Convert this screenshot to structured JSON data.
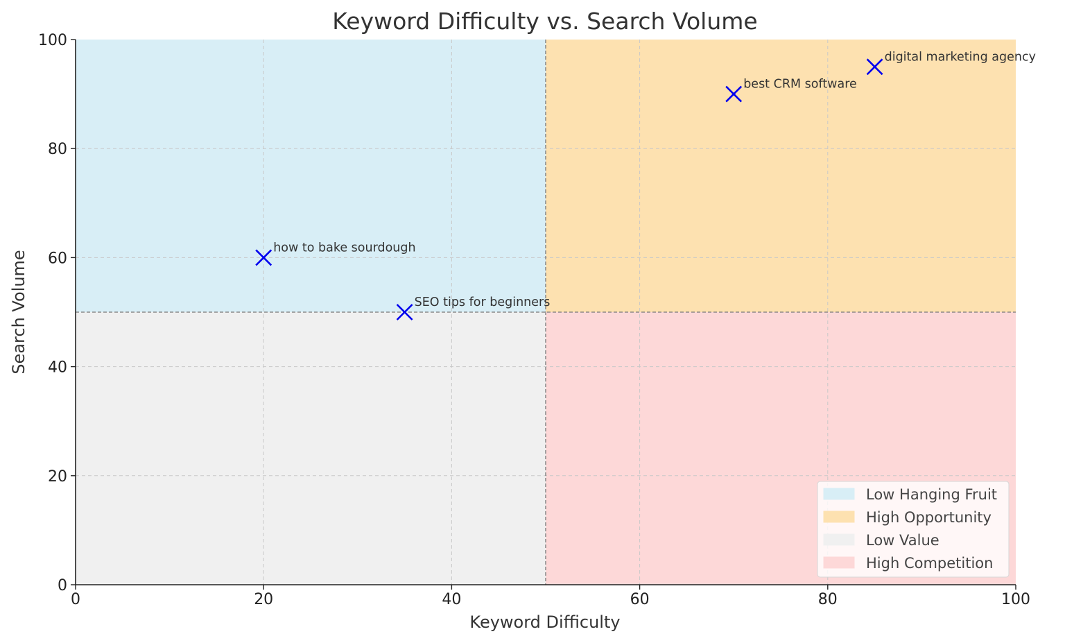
{
  "chart_data": {
    "type": "scatter",
    "title": "Keyword Difficulty vs. Search Volume",
    "xlabel": "Keyword Difficulty",
    "ylabel": "Search Volume",
    "xlim": [
      0,
      100
    ],
    "ylim": [
      0,
      100
    ],
    "xticks": [
      0,
      20,
      40,
      60,
      80,
      100
    ],
    "yticks": [
      0,
      20,
      40,
      60,
      80,
      100
    ],
    "grid": true,
    "legend_position": "bottom-right",
    "thresholds": {
      "x": 50,
      "y": 50
    },
    "quadrants": [
      {
        "name": "Low Hanging Fruit",
        "x_range": [
          0,
          50
        ],
        "y_range": [
          50,
          100
        ],
        "color": "#d8eef6"
      },
      {
        "name": "High Opportunity",
        "x_range": [
          50,
          100
        ],
        "y_range": [
          50,
          100
        ],
        "color": "#fde1b0"
      },
      {
        "name": "Low Value",
        "x_range": [
          0,
          50
        ],
        "y_range": [
          0,
          50
        ],
        "color": "#f0f0f0"
      },
      {
        "name": "High Competition",
        "x_range": [
          50,
          100
        ],
        "y_range": [
          0,
          50
        ],
        "color": "#fdd8d8"
      }
    ],
    "points": [
      {
        "label": "how to bake sourdough",
        "x": 20,
        "y": 60
      },
      {
        "label": "SEO tips for beginners",
        "x": 35,
        "y": 50
      },
      {
        "label": "best CRM software",
        "x": 70,
        "y": 90
      },
      {
        "label": "digital marketing agency",
        "x": 85,
        "y": 95
      }
    ],
    "marker": {
      "shape": "x",
      "color": "#0000ee"
    }
  }
}
